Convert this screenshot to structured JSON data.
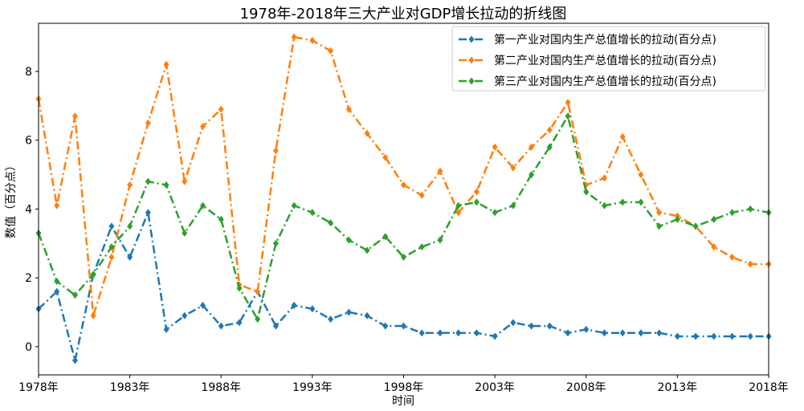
{
  "chart_data": {
    "type": "line",
    "title": "1978年-2018年三大产业对GDP增长拉动的折线图",
    "xlabel": "时间",
    "ylabel": "数值（百分点）",
    "xlim": [
      1978,
      2018
    ],
    "ylim": [
      -0.82,
      9.4
    ],
    "yticks": [
      0,
      2,
      4,
      6,
      8
    ],
    "xticks": [
      1978,
      1983,
      1988,
      1993,
      1998,
      2003,
      2008,
      2013,
      2018
    ],
    "xtick_labels": [
      "1978年",
      "1983年",
      "1988年",
      "1993年",
      "1998年",
      "2003年",
      "2008年",
      "2013年",
      "2018年"
    ],
    "grid": false,
    "legend_position": "top-right",
    "x": [
      1978,
      1979,
      1980,
      1981,
      1982,
      1983,
      1984,
      1985,
      1986,
      1987,
      1988,
      1989,
      1990,
      1991,
      1992,
      1993,
      1994,
      1995,
      1996,
      1997,
      1998,
      1999,
      2000,
      2001,
      2002,
      2003,
      2004,
      2005,
      2006,
      2007,
      2008,
      2009,
      2010,
      2011,
      2012,
      2013,
      2014,
      2015,
      2016,
      2017,
      2018
    ],
    "series": [
      {
        "name": "第一产业对国内生产总值增长的拉动(百分点)",
        "color": "#1f77b4",
        "values": [
          1.1,
          1.6,
          -0.4,
          2.1,
          3.5,
          2.6,
          3.9,
          0.5,
          0.9,
          1.2,
          0.6,
          0.7,
          1.6,
          0.6,
          1.2,
          1.1,
          0.8,
          1.0,
          0.9,
          0.6,
          0.6,
          0.4,
          0.4,
          0.4,
          0.4,
          0.3,
          0.7,
          0.6,
          0.6,
          0.4,
          0.5,
          0.4,
          0.4,
          0.4,
          0.4,
          0.3,
          0.3,
          0.3,
          0.3,
          0.3,
          0.3
        ]
      },
      {
        "name": "第二产业对国内生产总值增长的拉动(百分点)",
        "color": "#ff7f0e",
        "values": [
          7.2,
          4.1,
          6.7,
          0.9,
          2.6,
          4.7,
          6.5,
          8.2,
          4.8,
          6.4,
          6.9,
          1.8,
          1.6,
          5.7,
          9.0,
          8.9,
          8.6,
          6.9,
          6.2,
          5.5,
          4.7,
          4.4,
          5.1,
          3.9,
          4.5,
          5.8,
          5.2,
          5.8,
          6.3,
          7.1,
          4.7,
          4.9,
          6.1,
          5.0,
          3.9,
          3.8,
          3.5,
          2.9,
          2.6,
          2.4,
          2.4
        ]
      },
      {
        "name": "第三产业对国内生产总值增长的拉动(百分点)",
        "color": "#2ca02c",
        "values": [
          3.3,
          1.9,
          1.5,
          2.1,
          2.9,
          3.5,
          4.8,
          4.7,
          3.3,
          4.1,
          3.7,
          1.7,
          0.8,
          3.0,
          4.1,
          3.9,
          3.6,
          3.1,
          2.8,
          3.2,
          2.6,
          2.9,
          3.1,
          4.1,
          4.2,
          3.9,
          4.1,
          5.0,
          5.8,
          6.7,
          4.5,
          4.1,
          4.2,
          4.2,
          3.5,
          3.7,
          3.5,
          3.7,
          3.9,
          4.0,
          3.9
        ]
      }
    ]
  }
}
